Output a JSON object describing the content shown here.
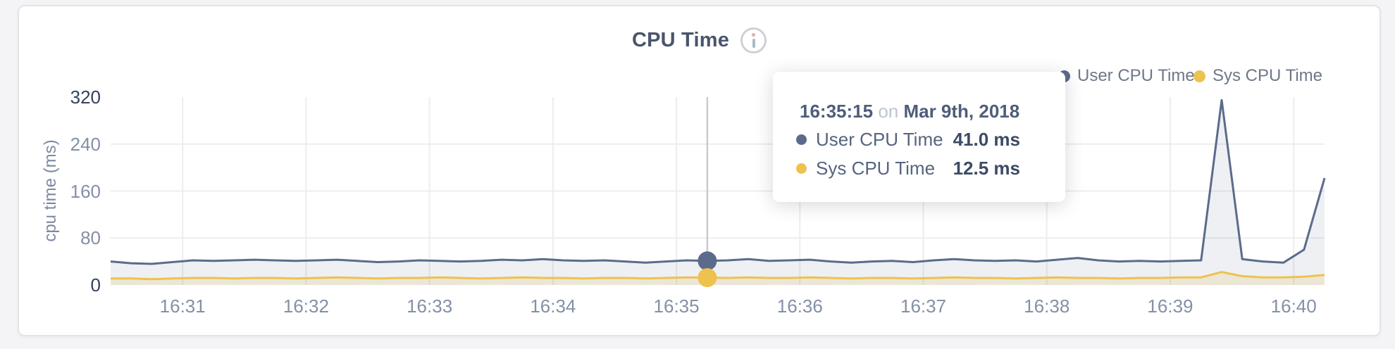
{
  "header": {
    "title": "CPU Time",
    "info_icon": "info"
  },
  "legend": {
    "items": [
      {
        "label": "User CPU Time",
        "color": "#5c6b8b"
      },
      {
        "label": "Sys CPU Time",
        "color": "#eec24e"
      }
    ]
  },
  "tooltip": {
    "time": "16:35:15",
    "connector": "on",
    "date": "Mar 9th, 2018",
    "rows": [
      {
        "label": "User CPU Time",
        "value": "41.0 ms",
        "color": "#5c6b8b"
      },
      {
        "label": "Sys CPU Time",
        "value": "12.5 ms",
        "color": "#eec24e"
      }
    ]
  },
  "chart_data": {
    "type": "area",
    "title": "CPU Time",
    "ylabel": "cpu time (ms)",
    "ylim": [
      0,
      320
    ],
    "yticks": [
      0,
      80,
      160,
      240,
      320
    ],
    "grid_y": [
      80,
      160,
      240
    ],
    "grid": true,
    "legend_position": "top-right",
    "x_start": "16:30:25",
    "x_end": "16:40:15",
    "x_interval_s": 10,
    "x_labels": [
      "16:31",
      "16:32",
      "16:33",
      "16:34",
      "16:35",
      "16:36",
      "16:37",
      "16:38",
      "16:39",
      "16:40"
    ],
    "hover": {
      "index": 29,
      "time": "16:35:15",
      "date": "Mar 9th, 2018"
    },
    "series": [
      {
        "name": "User CPU Time",
        "color": "#5c6b8b",
        "fill": "rgba(92,107,139,0.10)",
        "values": [
          40,
          37,
          36,
          39,
          42,
          41,
          42,
          43,
          42,
          41,
          42,
          43,
          41,
          39,
          40,
          42,
          41,
          40,
          41,
          43,
          42,
          44,
          42,
          41,
          42,
          40,
          38,
          40,
          42,
          41,
          42,
          44,
          41,
          42,
          43,
          40,
          38,
          40,
          41,
          39,
          42,
          44,
          42,
          41,
          42,
          40,
          43,
          46,
          42,
          40,
          41,
          40,
          41,
          42,
          315,
          44,
          40,
          38,
          60,
          182
        ]
      },
      {
        "name": "Sys CPU Time",
        "color": "#eec24e",
        "fill": "rgba(238,194,78,0.18)",
        "values": [
          11,
          11,
          10,
          11,
          12,
          12,
          11,
          12,
          12,
          11,
          12,
          13,
          12,
          11,
          12,
          12,
          13,
          12,
          11,
          12,
          13,
          12,
          12,
          11,
          12,
          12,
          11,
          12,
          13,
          12.5,
          12,
          13,
          12,
          12,
          13,
          12,
          11,
          12,
          12,
          11,
          12,
          13,
          12,
          12,
          11,
          12,
          13,
          12,
          12,
          11,
          12,
          12,
          13,
          13,
          22,
          15,
          13,
          13,
          14,
          17
        ]
      }
    ]
  }
}
